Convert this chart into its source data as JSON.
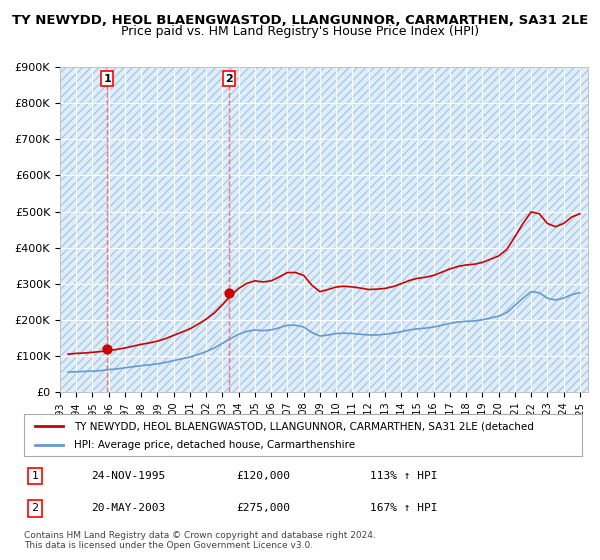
{
  "title": "TY NEWYDD, HEOL BLAENGWASTOD, LLANGUNNOR, CARMARTHEN, SA31 2LE",
  "subtitle": "Price paid vs. HM Land Registry's House Price Index (HPI)",
  "ylabel": "",
  "ylim": [
    0,
    900000
  ],
  "yticks": [
    0,
    100000,
    200000,
    300000,
    400000,
    500000,
    600000,
    700000,
    800000,
    900000
  ],
  "ytick_labels": [
    "£0",
    "£100K",
    "£200K",
    "£300K",
    "£400K",
    "£500K",
    "£600K",
    "£700K",
    "£800K",
    "£900K"
  ],
  "background_color": "#ffffff",
  "plot_bg_color": "#ddeeff",
  "grid_color": "#ffffff",
  "hatch_color": "#c8d8e8",
  "sale1_date": 1995.9,
  "sale1_price": 120000,
  "sale1_label": "1",
  "sale2_date": 2003.38,
  "sale2_price": 275000,
  "sale2_label": "2",
  "sale_color": "#cc0000",
  "hpi_color": "#6699cc",
  "vline_color": "#ff6666",
  "legend_text1": "TY NEWYDD, HEOL BLAENGWASTOD, LLANGUNNOR, CARMARTHEN, SA31 2LE (detached",
  "legend_text2": "HPI: Average price, detached house, Carmarthenshire",
  "table_entries": [
    {
      "num": "1",
      "date": "24-NOV-1995",
      "price": "£120,000",
      "hpi": "113% ↑ HPI"
    },
    {
      "num": "2",
      "date": "20-MAY-2003",
      "price": "£275,000",
      "hpi": "167% ↑ HPI"
    }
  ],
  "footer": "Contains HM Land Registry data © Crown copyright and database right 2024.\nThis data is licensed under the Open Government Licence v3.0.",
  "title_fontsize": 9.5,
  "subtitle_fontsize": 9,
  "hpi_data": {
    "years": [
      1993.5,
      1994.0,
      1994.5,
      1995.0,
      1995.5,
      1996.0,
      1996.5,
      1997.0,
      1997.5,
      1998.0,
      1998.5,
      1999.0,
      1999.5,
      2000.0,
      2000.5,
      2001.0,
      2001.5,
      2002.0,
      2002.5,
      2003.0,
      2003.5,
      2004.0,
      2004.5,
      2005.0,
      2005.5,
      2006.0,
      2006.5,
      2007.0,
      2007.5,
      2008.0,
      2008.5,
      2009.0,
      2009.5,
      2010.0,
      2010.5,
      2011.0,
      2011.5,
      2012.0,
      2012.5,
      2013.0,
      2013.5,
      2014.0,
      2014.5,
      2015.0,
      2015.5,
      2016.0,
      2016.5,
      2017.0,
      2017.5,
      2018.0,
      2018.5,
      2019.0,
      2019.5,
      2020.0,
      2020.5,
      2021.0,
      2021.5,
      2022.0,
      2022.5,
      2023.0,
      2023.5,
      2024.0,
      2024.5,
      2025.0
    ],
    "values": [
      55000,
      56000,
      57000,
      58000,
      59000,
      62000,
      64000,
      67000,
      70000,
      73000,
      75000,
      78000,
      82000,
      87000,
      92000,
      97000,
      104000,
      112000,
      122000,
      135000,
      148000,
      160000,
      168000,
      172000,
      170000,
      172000,
      178000,
      185000,
      185000,
      180000,
      165000,
      155000,
      158000,
      162000,
      163000,
      162000,
      160000,
      158000,
      158000,
      160000,
      163000,
      167000,
      172000,
      175000,
      177000,
      180000,
      185000,
      190000,
      194000,
      196000,
      197000,
      200000,
      205000,
      210000,
      220000,
      240000,
      260000,
      278000,
      275000,
      260000,
      255000,
      260000,
      270000,
      275000
    ]
  },
  "red_data": {
    "years": [
      1993.5,
      1994.0,
      1994.5,
      1995.0,
      1995.5,
      1996.0,
      1996.5,
      1997.0,
      1997.5,
      1998.0,
      1998.5,
      1999.0,
      1999.5,
      2000.0,
      2000.5,
      2001.0,
      2001.5,
      2002.0,
      2002.5,
      2003.0,
      2003.5,
      2004.0,
      2004.5,
      2005.0,
      2005.5,
      2006.0,
      2006.5,
      2007.0,
      2007.5,
      2008.0,
      2008.5,
      2009.0,
      2009.5,
      2010.0,
      2010.5,
      2011.0,
      2011.5,
      2012.0,
      2012.5,
      2013.0,
      2013.5,
      2014.0,
      2014.5,
      2015.0,
      2015.5,
      2016.0,
      2016.5,
      2017.0,
      2017.5,
      2018.0,
      2018.5,
      2019.0,
      2019.5,
      2020.0,
      2020.5,
      2021.0,
      2021.5,
      2022.0,
      2022.5,
      2023.0,
      2023.5,
      2024.0,
      2024.5,
      2025.0
    ],
    "values": [
      105000,
      107000,
      108000,
      110000,
      112000,
      115000,
      118000,
      122000,
      127000,
      132000,
      136000,
      141000,
      148000,
      157000,
      166000,
      175000,
      188000,
      202000,
      219000,
      242000,
      266000,
      287000,
      301000,
      308000,
      305000,
      308000,
      319000,
      331000,
      331000,
      323000,
      296000,
      278000,
      284000,
      291000,
      293000,
      291000,
      288000,
      284000,
      285000,
      287000,
      292000,
      300000,
      309000,
      315000,
      318000,
      323000,
      332000,
      341000,
      348000,
      352000,
      354000,
      359000,
      368000,
      377000,
      395000,
      430000,
      467000,
      499000,
      494000,
      467000,
      458000,
      467000,
      485000,
      494000
    ]
  },
  "xlim": [
    1993.0,
    2025.5
  ],
  "xticks": [
    1993,
    1994,
    1995,
    1996,
    1997,
    1998,
    1999,
    2000,
    2001,
    2002,
    2003,
    2004,
    2005,
    2006,
    2007,
    2008,
    2009,
    2010,
    2011,
    2012,
    2013,
    2014,
    2015,
    2016,
    2017,
    2018,
    2019,
    2020,
    2021,
    2022,
    2023,
    2024,
    2025
  ]
}
